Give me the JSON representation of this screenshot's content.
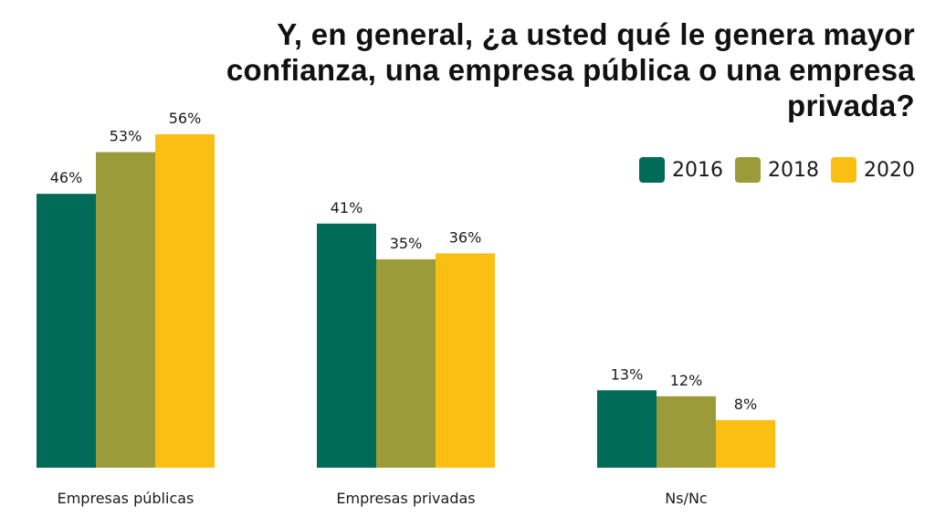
{
  "chart_data": {
    "type": "bar",
    "title": "Y, en general, ¿a usted qué le genera mayor confianza, una empresa pública o una empresa privada?",
    "categories": [
      "Empresas públicas",
      "Empresas privadas",
      "Ns/Nc"
    ],
    "series": [
      {
        "name": "2016",
        "values": [
          46,
          41,
          13
        ],
        "labels": [
          "46%",
          "41%",
          "13%"
        ],
        "color": "#006b57"
      },
      {
        "name": "2018",
        "values": [
          53,
          35,
          12
        ],
        "labels": [
          "53%",
          "35%",
          "12%"
        ],
        "color": "#9c9b3a"
      },
      {
        "name": "2020",
        "values": [
          56,
          36,
          8
        ],
        "labels": [
          "56%",
          "36%",
          "8%"
        ],
        "color": "#fbbf13"
      }
    ],
    "ylim": [
      0,
      56
    ],
    "xlabel": "",
    "ylabel": "",
    "grid": false,
    "legend": "top-right"
  }
}
